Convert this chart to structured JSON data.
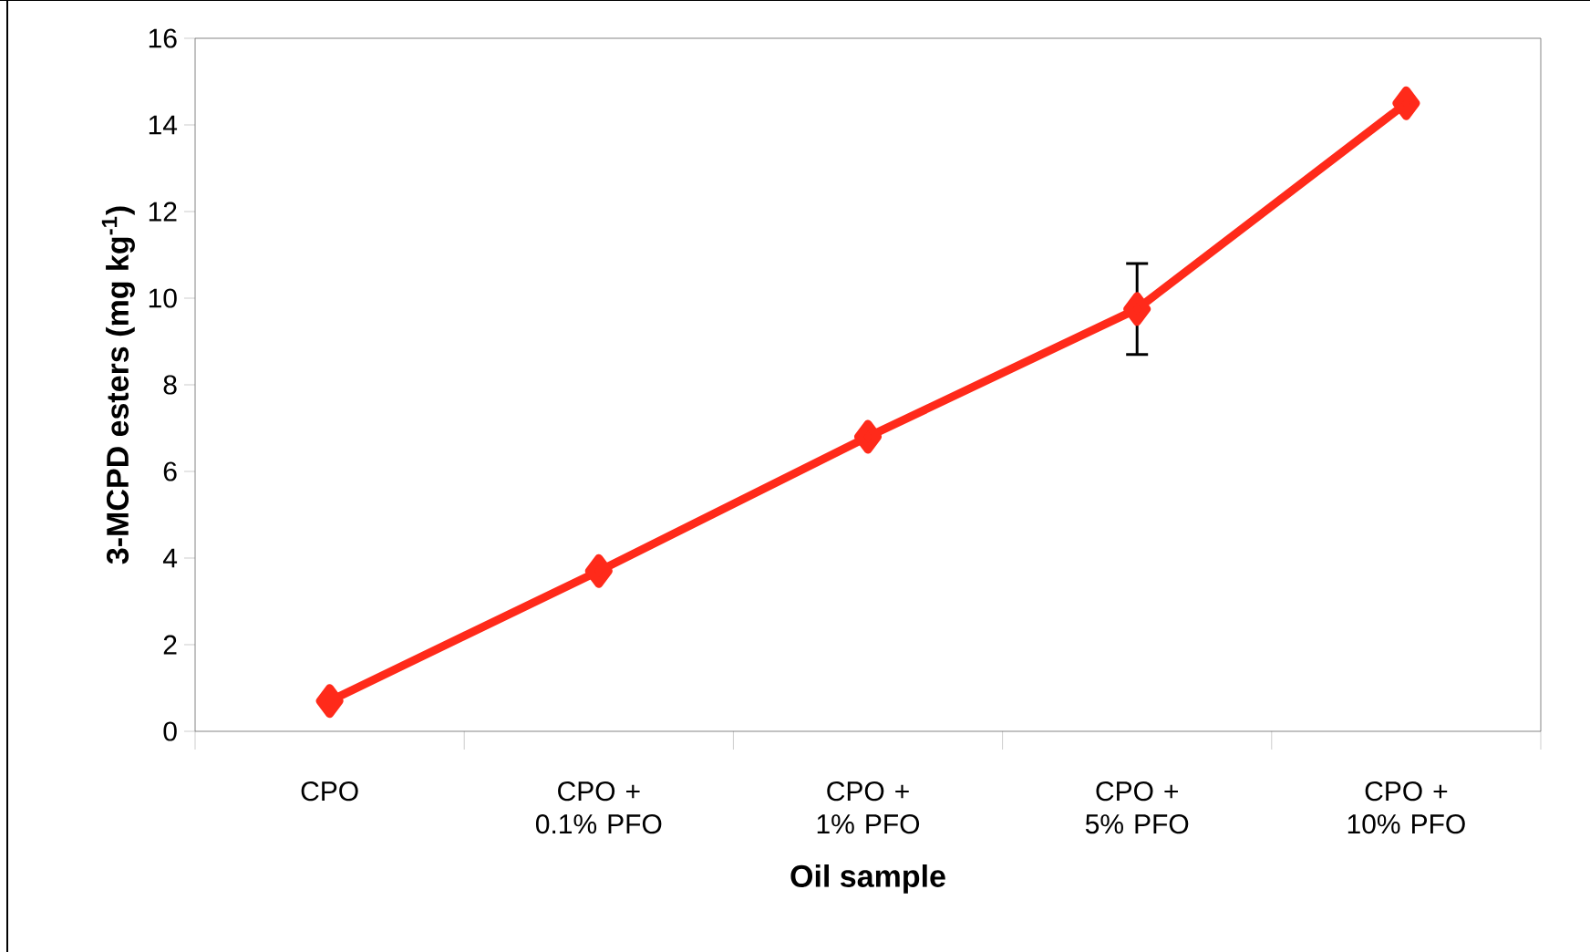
{
  "chart_data": {
    "type": "line",
    "xlabel": "Oil sample",
    "ylabel": "3-MCPD esters (mg kg$^{-1}$)",
    "categories": [
      "CPO",
      "CPO + 0.1% PFO",
      "CPO + 1% PFO",
      "CPO + 5% PFO",
      "CPO + 10% PFO"
    ],
    "series": [
      {
        "color": "#ff2a1a",
        "values": [
          0.7,
          3.7,
          6.8,
          9.75,
          14.5
        ],
        "errors": [
          null,
          null,
          null,
          [
            8.7,
            10.8
          ],
          null
        ]
      }
    ],
    "ylim": [
      0,
      16
    ],
    "yticks": [
      0,
      2,
      4,
      6,
      8,
      10,
      12,
      14,
      16
    ],
    "marker": "diamond",
    "line_style": "solid",
    "grid": false
  }
}
